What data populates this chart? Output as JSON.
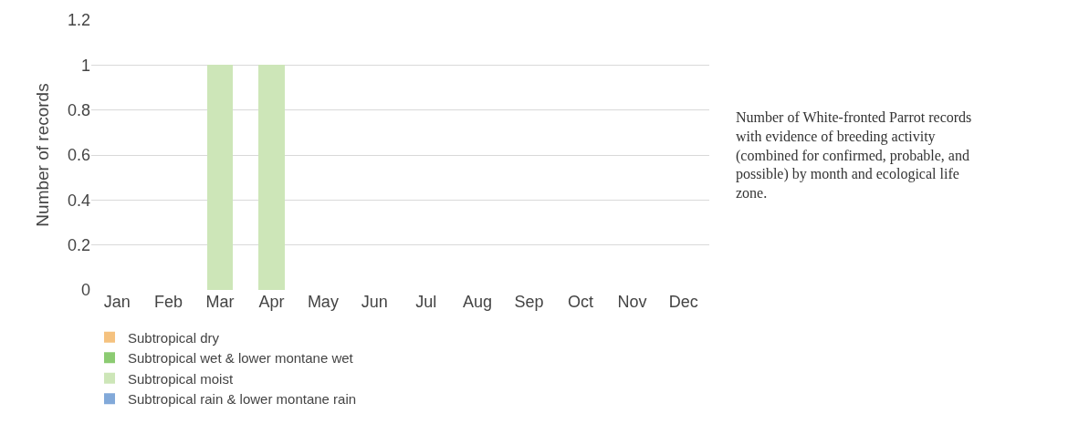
{
  "chart_data": {
    "type": "bar",
    "stacked": true,
    "ylabel": "Number of records",
    "categories": [
      "Jan",
      "Feb",
      "Mar",
      "Apr",
      "May",
      "Jun",
      "Jul",
      "Aug",
      "Sep",
      "Oct",
      "Nov",
      "Dec"
    ],
    "series": [
      {
        "name": "Subtropical dry",
        "color": "#f5c27f",
        "values": [
          0,
          0,
          0,
          0,
          0,
          0,
          0,
          0,
          0,
          0,
          0,
          0
        ]
      },
      {
        "name": "Subtropical wet & lower montane wet",
        "color": "#8ccb72",
        "values": [
          0,
          0,
          0,
          0,
          0,
          0,
          0,
          0,
          0,
          0,
          0,
          0
        ]
      },
      {
        "name": "Subtropical moist",
        "color": "#cde6b8",
        "values": [
          0,
          0,
          1,
          1,
          0,
          0,
          0,
          0,
          0,
          0,
          0,
          0
        ]
      },
      {
        "name": "Subtropical rain & lower montane rain",
        "color": "#82a9d9",
        "values": [
          0,
          0,
          0,
          0,
          0,
          0,
          0,
          0,
          0,
          0,
          0,
          0
        ]
      }
    ],
    "ylim": [
      0,
      1.2
    ],
    "yticks": [
      0,
      0.2,
      0.4,
      0.6,
      0.8,
      1,
      1.2
    ],
    "grid": "y",
    "legend": "bottom",
    "annotations": [
      "Number of White-fronted Parrot records with evidence of breeding activity (combined for confirmed, probable, and possible) by month and ecological life zone."
    ]
  }
}
